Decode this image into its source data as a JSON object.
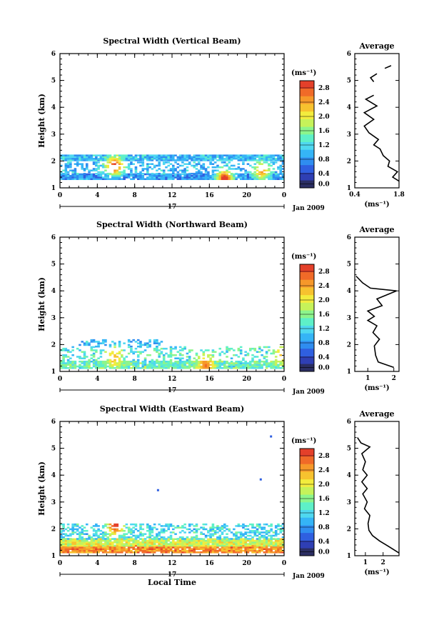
{
  "shared": {
    "xlabel": "Local Time",
    "ylabel": "Height (km)",
    "unit_label": "(ms⁻¹)",
    "day_label": "17",
    "month_label": "Jan 2009",
    "avg_title": "Average",
    "x_ticks": [
      "0",
      "4",
      "8",
      "12",
      "16",
      "20",
      "0"
    ],
    "y_ticks": [
      "1",
      "2",
      "3",
      "4",
      "5",
      "6"
    ],
    "cbar_ticks": [
      "0.0",
      "0.4",
      "0.8",
      "1.2",
      "1.6",
      "2.0",
      "2.4",
      "2.8"
    ],
    "colors": [
      "#2b2e63",
      "#2f3fb4",
      "#2f5fe0",
      "#2f8df0",
      "#35b4f6",
      "#4fd8f0",
      "#5ef0c8",
      "#8cf58c",
      "#c6f25a",
      "#f3ec3d",
      "#f7c22f",
      "#f6982a",
      "#f06a28",
      "#e4402a"
    ]
  },
  "chart_data": [
    {
      "type": "heatmap",
      "title": "Spectral Width (Vertical Beam)",
      "xlim": [
        0,
        24
      ],
      "ylim": [
        1,
        6
      ],
      "colorbar_range": [
        0,
        3.0
      ],
      "x_ticks": [
        "0",
        "4",
        "8",
        "12",
        "16",
        "20",
        "0"
      ],
      "bands": [
        {
          "t_start": 0.0,
          "t_end": 24.0,
          "h_low": 1.3,
          "h_high": 1.5,
          "base_value": 0.8
        },
        {
          "t_start": 0.0,
          "t_end": 24.0,
          "h_low": 1.5,
          "h_high": 1.95,
          "base_value": 1.0,
          "coverage": 0.45
        },
        {
          "t_start": 0.0,
          "t_end": 24.0,
          "h_low": 2.0,
          "h_high": 2.2,
          "base_value": 1.0
        }
      ],
      "hotspots": [
        {
          "t": 5.7,
          "h": 1.8,
          "value": 2.9
        },
        {
          "t": 17.5,
          "h": 1.3,
          "value": 3.0
        },
        {
          "t": 21.5,
          "h": 1.6,
          "value": 2.4
        }
      ],
      "profile": {
        "title": "Average",
        "xlim": [
          0.4,
          1.8
        ],
        "x_ticks": [
          "0.4",
          "1.8"
        ],
        "xlabel": "(ms⁻¹)",
        "segments": [
          [
            [
              1.8,
              1.25
            ],
            [
              1.6,
              1.4
            ],
            [
              1.75,
              1.6
            ],
            [
              1.45,
              1.8
            ],
            [
              1.5,
              2.0
            ],
            [
              1.3,
              2.2
            ],
            [
              1.2,
              2.45
            ],
            [
              1.0,
              2.6
            ],
            [
              1.15,
              2.8
            ],
            [
              0.85,
              3.05
            ],
            [
              0.7,
              3.3
            ],
            [
              1.0,
              3.55
            ],
            [
              0.7,
              3.8
            ],
            [
              1.1,
              4.05
            ],
            [
              0.75,
              4.3
            ],
            [
              1.0,
              4.45
            ]
          ],
          [
            [
              1.0,
              4.95
            ],
            [
              0.9,
              5.1
            ],
            [
              1.1,
              5.25
            ]
          ],
          [
            [
              1.35,
              5.45
            ],
            [
              1.55,
              5.55
            ]
          ]
        ]
      }
    },
    {
      "type": "heatmap",
      "title": "Spectral Width (Northward Beam)",
      "xlim": [
        0,
        24
      ],
      "ylim": [
        1,
        6
      ],
      "colorbar_range": [
        0,
        3.0
      ],
      "x_ticks": [
        "0",
        "4",
        "8",
        "12",
        "16",
        "20",
        "0"
      ],
      "bands": [
        {
          "t_start": 0.0,
          "t_end": 24.0,
          "h_low": 1.1,
          "h_high": 1.4,
          "base_value": 1.4
        },
        {
          "t_start": 0.0,
          "t_end": 24.0,
          "h_low": 1.4,
          "h_high": 1.9,
          "base_value": 1.3,
          "coverage": 0.3
        },
        {
          "t_start": 2.0,
          "t_end": 11.0,
          "h_low": 1.9,
          "h_high": 2.2,
          "base_value": 1.0,
          "coverage": 0.4
        }
      ],
      "hotspots": [
        {
          "t": 5.7,
          "h": 1.5,
          "value": 2.3
        },
        {
          "t": 15.5,
          "h": 1.2,
          "value": 2.6
        },
        {
          "t": 23.5,
          "h": 1.6,
          "value": 2.2
        }
      ],
      "profile": {
        "title": "Average",
        "xlim": [
          0.5,
          2.2
        ],
        "x_ticks": [
          "1",
          "2"
        ],
        "xlabel": "(ms⁻¹)",
        "segments": [
          [
            [
              2.0,
              1.15
            ],
            [
              1.4,
              1.35
            ],
            [
              1.3,
              1.6
            ],
            [
              1.25,
              1.95
            ],
            [
              1.45,
              2.2
            ],
            [
              1.2,
              2.45
            ],
            [
              1.35,
              2.7
            ],
            [
              1.0,
              2.9
            ],
            [
              1.25,
              3.05
            ],
            [
              1.0,
              3.25
            ],
            [
              1.55,
              3.45
            ],
            [
              1.35,
              3.7
            ],
            [
              2.1,
              4.0
            ],
            [
              1.1,
              4.1
            ],
            [
              0.8,
              4.3
            ],
            [
              0.55,
              4.55
            ]
          ]
        ]
      }
    },
    {
      "type": "heatmap",
      "title": "Spectral Width (Eastward Beam)",
      "xlim": [
        0,
        24
      ],
      "ylim": [
        1,
        6
      ],
      "colorbar_range": [
        0,
        3.0
      ],
      "x_ticks": [
        "0",
        "4",
        "8",
        "12",
        "16",
        "20",
        "0"
      ],
      "bands": [
        {
          "t_start": 0.0,
          "t_end": 24.0,
          "h_low": 1.1,
          "h_high": 1.35,
          "base_value": 2.5
        },
        {
          "t_start": 0.0,
          "t_end": 24.0,
          "h_low": 1.35,
          "h_high": 1.6,
          "base_value": 1.9
        },
        {
          "t_start": 0.0,
          "t_end": 24.0,
          "h_low": 1.6,
          "h_high": 2.2,
          "base_value": 1.2,
          "coverage": 0.5
        }
      ],
      "hotspots": [
        {
          "t": 5.8,
          "h": 2.1,
          "value": 2.9
        },
        {
          "t": 10.5,
          "h": 3.4,
          "value": 0.6
        },
        {
          "t": 21.5,
          "h": 3.8,
          "value": 0.6
        },
        {
          "t": 22.6,
          "h": 5.4,
          "value": 0.6
        }
      ],
      "profile": {
        "title": "Average",
        "xlim": [
          0.4,
          2.9
        ],
        "x_ticks": [
          "1",
          "2"
        ],
        "xlabel": "(ms⁻¹)",
        "segments": [
          [
            [
              2.9,
              1.1
            ],
            [
              2.3,
              1.35
            ],
            [
              1.8,
              1.55
            ],
            [
              1.4,
              1.75
            ],
            [
              1.2,
              1.95
            ],
            [
              1.15,
              2.2
            ],
            [
              1.25,
              2.5
            ],
            [
              0.95,
              2.75
            ],
            [
              1.1,
              3.0
            ],
            [
              0.85,
              3.3
            ],
            [
              1.1,
              3.5
            ],
            [
              0.8,
              3.75
            ],
            [
              1.1,
              4.0
            ],
            [
              0.85,
              4.2
            ],
            [
              1.0,
              4.5
            ],
            [
              0.8,
              4.8
            ],
            [
              1.25,
              5.05
            ],
            [
              0.75,
              5.2
            ],
            [
              0.55,
              5.4
            ]
          ]
        ]
      }
    }
  ]
}
